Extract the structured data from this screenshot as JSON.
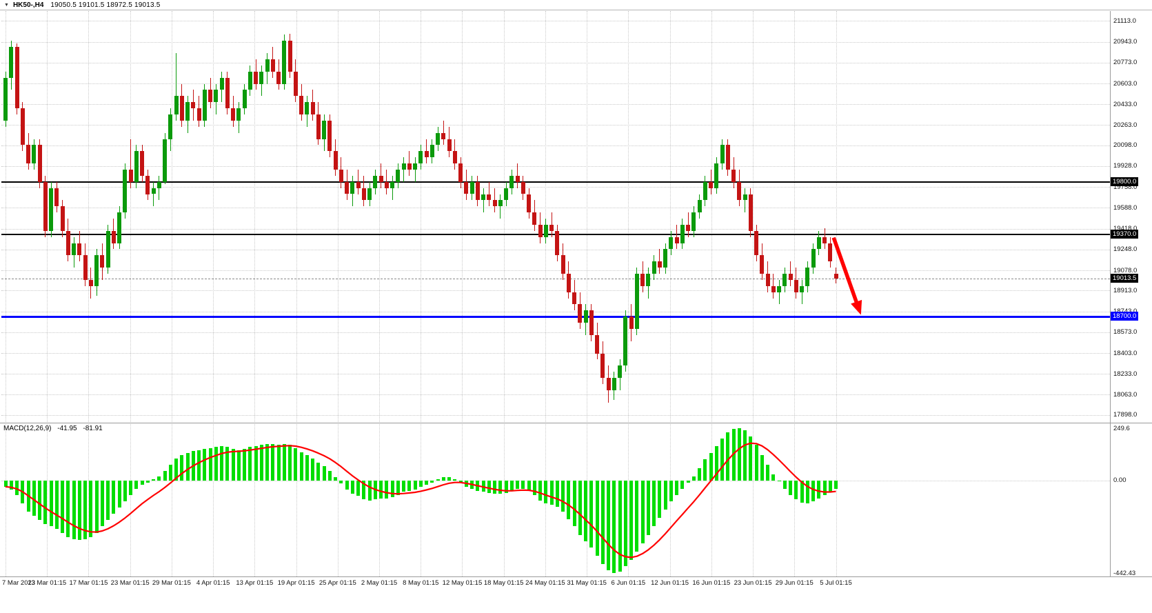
{
  "window": {
    "dropdown_icon": "▼",
    "symbol": "HK50-,H4",
    "ohlc": "19050.5 19101.5 18972.5 19013.5"
  },
  "indicator_header": {
    "name": "MACD(12,26,9)",
    "value_main": "-41.95",
    "value_signal": "-81.91"
  },
  "colors": {
    "bull": "#0b9a0b",
    "bear": "#c41414",
    "grid": "#c9c9c9",
    "separator": "#9a9a9a",
    "axis_text": "#111111",
    "arrow": "#ff0000",
    "current_price_line": "#8a8a8a"
  },
  "price_axis": {
    "badges": [
      {
        "label": "19800.0",
        "value": 19800.0,
        "bg": "#000000"
      },
      {
        "label": "19370.0",
        "value": 19370.0,
        "bg": "#000000"
      },
      {
        "label": "19013.5",
        "value": 19013.5,
        "bg": "#000000"
      },
      {
        "label": "18700.0",
        "value": 18700.0,
        "bg": "#0000ff"
      }
    ]
  },
  "chart_data": [
    {
      "type": "candlestick",
      "title": "HK50-,H4",
      "current_ohlc": {
        "open": 19050.5,
        "high": 19101.5,
        "low": 18972.5,
        "close": 19013.5
      },
      "last_price": 19013.5,
      "ylim": [
        17880,
        21160
      ],
      "y_ticks": [
        21113.0,
        20943.0,
        20773.0,
        20603.0,
        20433.0,
        20263.0,
        20098.0,
        19928.0,
        19758.0,
        19588.0,
        19418.0,
        19248.0,
        19078.0,
        18913.0,
        18743.0,
        18573.0,
        18403.0,
        18233.0,
        18063.0,
        17898.0
      ],
      "x_labels": [
        "7 Mar 2023",
        "13 Mar 01:15",
        "17 Mar 01:15",
        "23 Mar 01:15",
        "29 Mar 01:15",
        "4 Apr 01:15",
        "13 Apr 01:15",
        "19 Apr 01:15",
        "25 Apr 01:15",
        "2 May 01:15",
        "8 May 01:15",
        "12 May 01:15",
        "18 May 01:15",
        "24 May 01:15",
        "31 May 01:15",
        "6 Jun 01:15",
        "12 Jun 01:15",
        "16 Jun 01:15",
        "23 Jun 01:15",
        "29 Jun 01:15",
        "5 Jul 01:15"
      ],
      "hlines": [
        {
          "value": 19800.0,
          "color": "#000000",
          "thickness": 2
        },
        {
          "value": 19370.0,
          "color": "#000000",
          "thickness": 2
        },
        {
          "value": 18700.0,
          "color": "#0000ff",
          "thickness": 3
        }
      ],
      "annotation": {
        "type": "arrow",
        "color": "#ff0000",
        "from": {
          "bar": 145.6,
          "price": 19345
        },
        "to": {
          "bar": 150.4,
          "price": 18715
        }
      },
      "ohlc": [
        [
          20300,
          20700,
          20250,
          20650
        ],
        [
          20650,
          20950,
          20550,
          20900
        ],
        [
          20900,
          20930,
          20350,
          20400
        ],
        [
          20400,
          20450,
          20050,
          20100
        ],
        [
          20100,
          20200,
          19900,
          19950
        ],
        [
          19950,
          20150,
          19900,
          20100
        ],
        [
          20100,
          20150,
          19750,
          19800
        ],
        [
          19800,
          19850,
          19350,
          19400
        ],
        [
          19400,
          19800,
          19350,
          19750
        ],
        [
          19750,
          19800,
          19550,
          19600
        ],
        [
          19600,
          19650,
          19350,
          19400
        ],
        [
          19400,
          19500,
          19150,
          19200
        ],
        [
          19200,
          19350,
          19100,
          19300
        ],
        [
          19300,
          19400,
          19150,
          19200
        ],
        [
          19200,
          19300,
          18950,
          19000
        ],
        [
          19000,
          19100,
          18850,
          18950
        ],
        [
          18950,
          19250,
          18870,
          19200
        ],
        [
          19200,
          19300,
          19000,
          19100
        ],
        [
          19100,
          19450,
          19050,
          19400
        ],
        [
          19400,
          19500,
          19250,
          19300
        ],
        [
          19300,
          19600,
          19250,
          19550
        ],
        [
          19550,
          19950,
          19500,
          19900
        ],
        [
          19900,
          20150,
          19750,
          19800
        ],
        [
          19800,
          20100,
          19750,
          20050
        ],
        [
          20050,
          20100,
          19800,
          19850
        ],
        [
          19850,
          19900,
          19650,
          19700
        ],
        [
          19700,
          19800,
          19600,
          19750
        ],
        [
          19750,
          19850,
          19650,
          19800
        ],
        [
          19800,
          20200,
          19780,
          20150
        ],
        [
          20150,
          20400,
          20050,
          20350
        ],
        [
          20350,
          20850,
          20300,
          20500
        ],
        [
          20500,
          20600,
          20250,
          20300
        ],
        [
          20300,
          20500,
          20200,
          20450
        ],
        [
          20450,
          20550,
          20300,
          20400
        ],
        [
          20400,
          20500,
          20250,
          20300
        ],
        [
          20300,
          20600,
          20250,
          20550
        ],
        [
          20550,
          20650,
          20400,
          20450
        ],
        [
          20450,
          20600,
          20350,
          20550
        ],
        [
          20550,
          20700,
          20450,
          20650
        ],
        [
          20650,
          20700,
          20350,
          20400
        ],
        [
          20400,
          20500,
          20250,
          20300
        ],
        [
          20300,
          20450,
          20200,
          20400
        ],
        [
          20400,
          20600,
          20350,
          20550
        ],
        [
          20550,
          20750,
          20500,
          20700
        ],
        [
          20700,
          20800,
          20550,
          20600
        ],
        [
          20600,
          20750,
          20500,
          20700
        ],
        [
          20700,
          20850,
          20600,
          20800
        ],
        [
          20800,
          20900,
          20650,
          20700
        ],
        [
          20700,
          20800,
          20550,
          20600
        ],
        [
          20600,
          21000,
          20550,
          20950
        ],
        [
          20950,
          21010,
          20650,
          20700
        ],
        [
          20700,
          20800,
          20450,
          20500
        ],
        [
          20500,
          20600,
          20300,
          20350
        ],
        [
          20350,
          20500,
          20250,
          20450
        ],
        [
          20450,
          20550,
          20300,
          20350
        ],
        [
          20350,
          20450,
          20100,
          20150
        ],
        [
          20150,
          20350,
          20050,
          20300
        ],
        [
          20300,
          20350,
          20000,
          20050
        ],
        [
          20050,
          20150,
          19850,
          19900
        ],
        [
          19900,
          20000,
          19750,
          19800
        ],
        [
          19800,
          19900,
          19650,
          19700
        ],
        [
          19700,
          19850,
          19600,
          19800
        ],
        [
          19800,
          19900,
          19700,
          19750
        ],
        [
          19750,
          19850,
          19600,
          19650
        ],
        [
          19650,
          19800,
          19600,
          19750
        ],
        [
          19750,
          19900,
          19700,
          19850
        ],
        [
          19850,
          19950,
          19750,
          19800
        ],
        [
          19800,
          19900,
          19700,
          19750
        ],
        [
          19750,
          19850,
          19650,
          19800
        ],
        [
          19800,
          19950,
          19750,
          19900
        ],
        [
          19900,
          20000,
          19800,
          19950
        ],
        [
          19950,
          20050,
          19850,
          19900
        ],
        [
          19900,
          20000,
          19800,
          19950
        ],
        [
          19950,
          20100,
          19900,
          20050
        ],
        [
          20050,
          20150,
          19950,
          20000
        ],
        [
          20000,
          20150,
          19950,
          20100
        ],
        [
          20100,
          20250,
          20050,
          20200
        ],
        [
          20200,
          20300,
          20100,
          20150
        ],
        [
          20150,
          20250,
          20000,
          20050
        ],
        [
          20050,
          20150,
          19900,
          19950
        ],
        [
          19950,
          20000,
          19750,
          19800
        ],
        [
          19800,
          19900,
          19650,
          19700
        ],
        [
          19700,
          19850,
          19650,
          19800
        ],
        [
          19800,
          19850,
          19600,
          19650
        ],
        [
          19650,
          19750,
          19550,
          19700
        ],
        [
          19700,
          19800,
          19600,
          19650
        ],
        [
          19650,
          19750,
          19550,
          19600
        ],
        [
          19600,
          19700,
          19500,
          19650
        ],
        [
          19650,
          19800,
          19600,
          19750
        ],
        [
          19750,
          19900,
          19700,
          19850
        ],
        [
          19850,
          19950,
          19750,
          19800
        ],
        [
          19800,
          19850,
          19650,
          19700
        ],
        [
          19700,
          19750,
          19500,
          19550
        ],
        [
          19550,
          19650,
          19400,
          19450
        ],
        [
          19450,
          19550,
          19300,
          19350
        ],
        [
          19350,
          19500,
          19300,
          19450
        ],
        [
          19450,
          19550,
          19350,
          19400
        ],
        [
          19400,
          19450,
          19150,
          19200
        ],
        [
          19200,
          19300,
          19000,
          19050
        ],
        [
          19050,
          19150,
          18850,
          18900
        ],
        [
          18900,
          19000,
          18750,
          18800
        ],
        [
          18800,
          18900,
          18600,
          18650
        ],
        [
          18650,
          18800,
          18550,
          18750
        ],
        [
          18750,
          18800,
          18500,
          18550
        ],
        [
          18550,
          18650,
          18350,
          18400
        ],
        [
          18400,
          18500,
          18150,
          18200
        ],
        [
          18200,
          18300,
          18000,
          18100
        ],
        [
          18100,
          18250,
          18020,
          18200
        ],
        [
          18200,
          18350,
          18100,
          18300
        ],
        [
          18300,
          18750,
          18250,
          18700
        ],
        [
          18700,
          18800,
          18500,
          18600
        ],
        [
          18600,
          19100,
          18550,
          19050
        ],
        [
          19050,
          19150,
          18900,
          18950
        ],
        [
          18950,
          19100,
          18850,
          19050
        ],
        [
          19050,
          19200,
          19000,
          19150
        ],
        [
          19150,
          19250,
          19050,
          19100
        ],
        [
          19100,
          19300,
          19050,
          19250
        ],
        [
          19250,
          19400,
          19200,
          19350
        ],
        [
          19350,
          19450,
          19250,
          19300
        ],
        [
          19300,
          19500,
          19250,
          19450
        ],
        [
          19450,
          19550,
          19350,
          19400
        ],
        [
          19400,
          19600,
          19350,
          19550
        ],
        [
          19550,
          19700,
          19500,
          19650
        ],
        [
          19650,
          19850,
          19600,
          19800
        ],
        [
          19800,
          19900,
          19700,
          19750
        ],
        [
          19750,
          20000,
          19700,
          19950
        ],
        [
          19950,
          20150,
          19900,
          20100
        ],
        [
          20100,
          20150,
          19850,
          19900
        ],
        [
          19900,
          20000,
          19750,
          19800
        ],
        [
          19800,
          19900,
          19600,
          19650
        ],
        [
          19650,
          19750,
          19550,
          19700
        ],
        [
          19700,
          19750,
          19350,
          19400
        ],
        [
          19400,
          19450,
          19150,
          19200
        ],
        [
          19200,
          19300,
          19000,
          19050
        ],
        [
          19050,
          19150,
          18900,
          18950
        ],
        [
          18950,
          19050,
          18850,
          18900
        ],
        [
          18900,
          19000,
          18800,
          18950
        ],
        [
          18950,
          19100,
          18900,
          19050
        ],
        [
          19050,
          19150,
          18950,
          19000
        ],
        [
          19000,
          19100,
          18850,
          18900
        ],
        [
          18900,
          19000,
          18800,
          18950
        ],
        [
          18950,
          19150,
          18900,
          19100
        ],
        [
          19100,
          19300,
          19050,
          19250
        ],
        [
          19250,
          19400,
          19200,
          19350
        ],
        [
          19350,
          19420,
          19250,
          19300
        ],
        [
          19300,
          19350,
          19100,
          19150
        ],
        [
          19050.5,
          19101.5,
          18972.5,
          19013.5
        ]
      ]
    },
    {
      "type": "bar",
      "name": "MACD(12,26,9)",
      "macd_value": -41.95,
      "signal_value": -81.91,
      "signal_period": 9,
      "ylim": [
        -442.43,
        249.6
      ],
      "y_ticks": [
        {
          "value": 249.6,
          "label": "249.6"
        },
        {
          "value": 0,
          "label": "0.00"
        },
        {
          "value": -442.43,
          "label": "-442.43"
        }
      ],
      "bar_color": "#00dd00",
      "signal_color": "#ff0000",
      "values": [
        -30,
        -45,
        -70,
        -110,
        -150,
        -170,
        -190,
        -210,
        -220,
        -230,
        -250,
        -270,
        -280,
        -285,
        -280,
        -270,
        -250,
        -220,
        -190,
        -160,
        -130,
        -100,
        -70,
        -40,
        -20,
        -10,
        5,
        20,
        45,
        75,
        105,
        120,
        130,
        140,
        145,
        150,
        155,
        160,
        165,
        160,
        150,
        145,
        150,
        160,
        165,
        170,
        175,
        175,
        170,
        175,
        170,
        155,
        135,
        120,
        105,
        85,
        70,
        45,
        15,
        -15,
        -45,
        -65,
        -75,
        -90,
        -95,
        -90,
        -85,
        -85,
        -80,
        -70,
        -55,
        -50,
        -45,
        -30,
        -20,
        -10,
        5,
        15,
        15,
        5,
        -10,
        -30,
        -40,
        -50,
        -55,
        -60,
        -65,
        -65,
        -60,
        -50,
        -40,
        -40,
        -50,
        -70,
        -95,
        -110,
        -115,
        -125,
        -150,
        -185,
        -220,
        -260,
        -290,
        -320,
        -360,
        -400,
        -430,
        -442,
        -435,
        -410,
        -380,
        -340,
        -300,
        -260,
        -220,
        -180,
        -140,
        -100,
        -70,
        -40,
        -10,
        20,
        60,
        100,
        130,
        165,
        200,
        230,
        245,
        250,
        240,
        210,
        170,
        120,
        75,
        30,
        -5,
        -40,
        -70,
        -90,
        -105,
        -110,
        -100,
        -85,
        -70,
        -55,
        -41.95
      ]
    }
  ]
}
